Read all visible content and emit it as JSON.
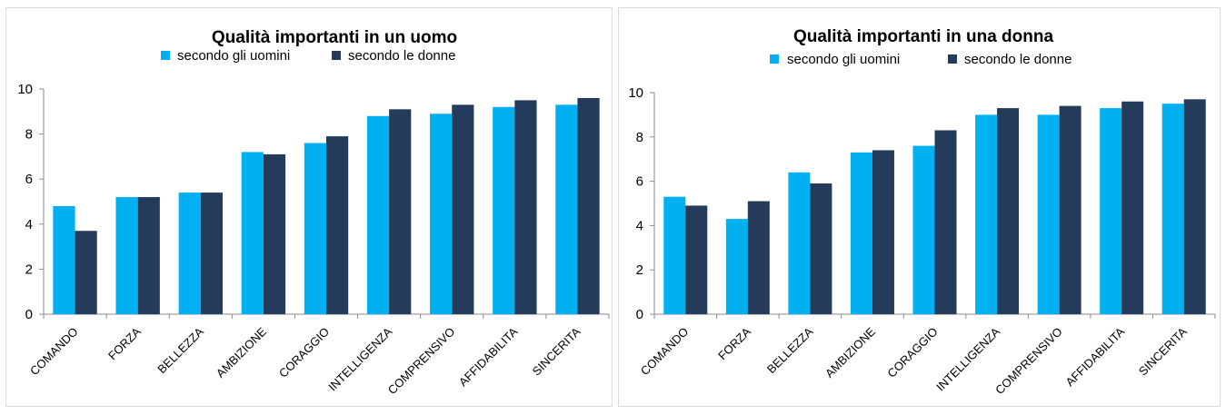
{
  "chart_data": [
    {
      "type": "bar",
      "title": "Qualità importanti in un uomo",
      "categories": [
        "COMANDO",
        "FORZA",
        "BELLEZZA",
        "AMBIZIONE",
        "CORAGGIO",
        "INTELLIGENZA",
        "COMPRENSIVO",
        "AFFIDABILITA",
        "SINCERITA"
      ],
      "series": [
        {
          "name": "secondo gli uomini",
          "color": "#00b0f0",
          "values": [
            4.8,
            5.2,
            5.4,
            7.2,
            7.6,
            8.8,
            8.9,
            9.2,
            9.3
          ]
        },
        {
          "name": "secondo le donne",
          "color": "#243b5b",
          "values": [
            3.7,
            5.2,
            5.4,
            7.1,
            7.9,
            9.1,
            9.3,
            9.5,
            9.6
          ]
        }
      ],
      "ylim": [
        0,
        10
      ],
      "yticks": [
        "0",
        "2",
        "4",
        "6",
        "8",
        "10"
      ],
      "grid": false,
      "legend": "top"
    },
    {
      "type": "bar",
      "title": "Qualità importanti in una donna",
      "categories": [
        "COMANDO",
        "FORZA",
        "BELLEZZA",
        "AMBIZIONE",
        "CORAGGIO",
        "INTELLIGENZA",
        "COMPRENSIVO",
        "AFFIDABILITA",
        "SINCERITA"
      ],
      "series": [
        {
          "name": "secondo gli uomini",
          "color": "#00b0f0",
          "values": [
            5.3,
            4.3,
            6.4,
            7.3,
            7.6,
            9.0,
            9.0,
            9.3,
            9.5
          ]
        },
        {
          "name": "secondo le donne",
          "color": "#243b5b",
          "values": [
            4.9,
            5.1,
            5.9,
            7.4,
            8.3,
            9.3,
            9.4,
            9.6,
            9.7
          ]
        }
      ],
      "ylim": [
        0,
        10
      ],
      "yticks": [
        "0",
        "2",
        "4",
        "6",
        "8",
        "10"
      ],
      "grid": false,
      "legend": "top"
    }
  ]
}
